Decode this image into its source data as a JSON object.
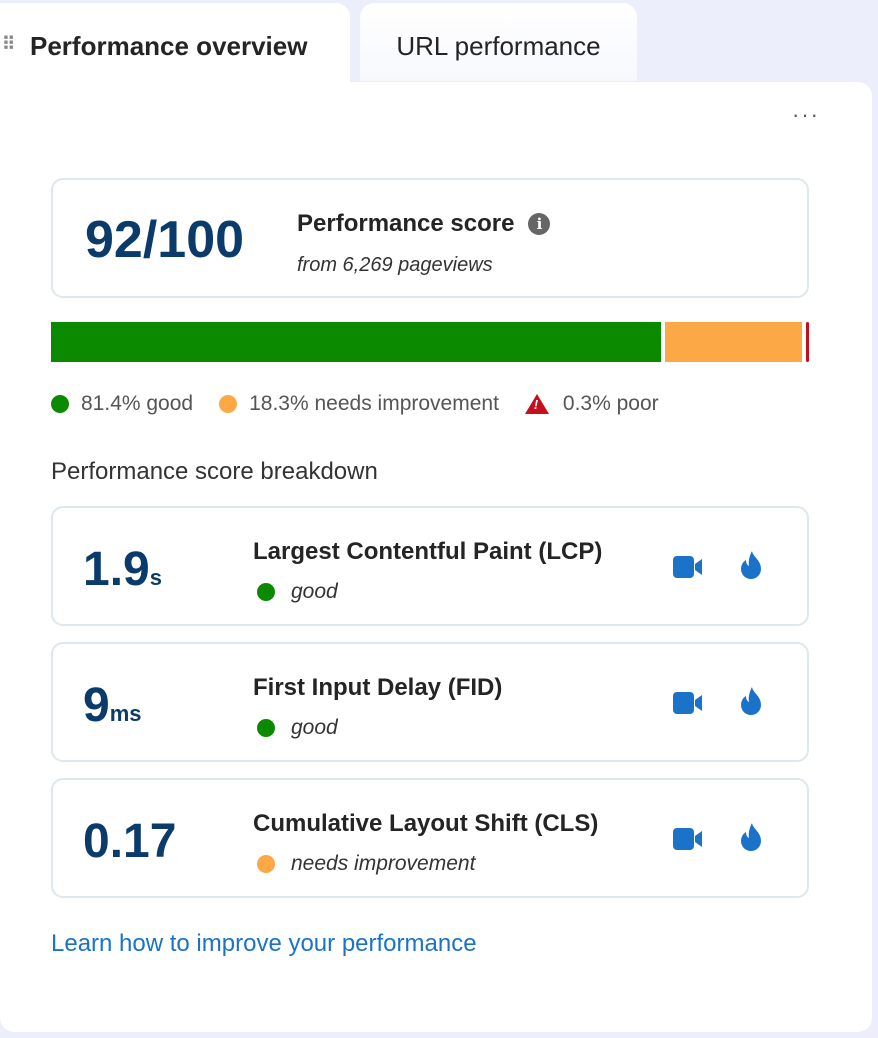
{
  "tabs": [
    {
      "label": "Performance overview",
      "active": true
    },
    {
      "label": "URL performance",
      "active": false
    }
  ],
  "more_label": "···",
  "score": {
    "value": "92/100",
    "title": "Performance score",
    "subtitle": "from 6,269 pageviews"
  },
  "distribution": [
    {
      "pct": 81.4,
      "label": "81.4% good",
      "color": "#0b8a00"
    },
    {
      "pct": 18.3,
      "label": "18.3% needs improvement",
      "color": "#fca847"
    },
    {
      "pct": 0.3,
      "label": "0.3% poor",
      "color": "#c50f1f"
    }
  ],
  "breakdown_title": "Performance score breakdown",
  "metrics": [
    {
      "value": "1.9",
      "unit": "s",
      "name": "Largest Contentful Paint (LCP)",
      "status": "good",
      "status_color": "#0b8a00"
    },
    {
      "value": "9",
      "unit": "ms",
      "name": "First Input Delay (FID)",
      "status": "good",
      "status_color": "#0b8a00"
    },
    {
      "value": "0.17",
      "unit": "",
      "name": "Cumulative Layout Shift (CLS)",
      "status": "needs improvement",
      "status_color": "#fca847"
    }
  ],
  "learn_link": "Learn how to improve your performance",
  "accent": "#1a73c9"
}
